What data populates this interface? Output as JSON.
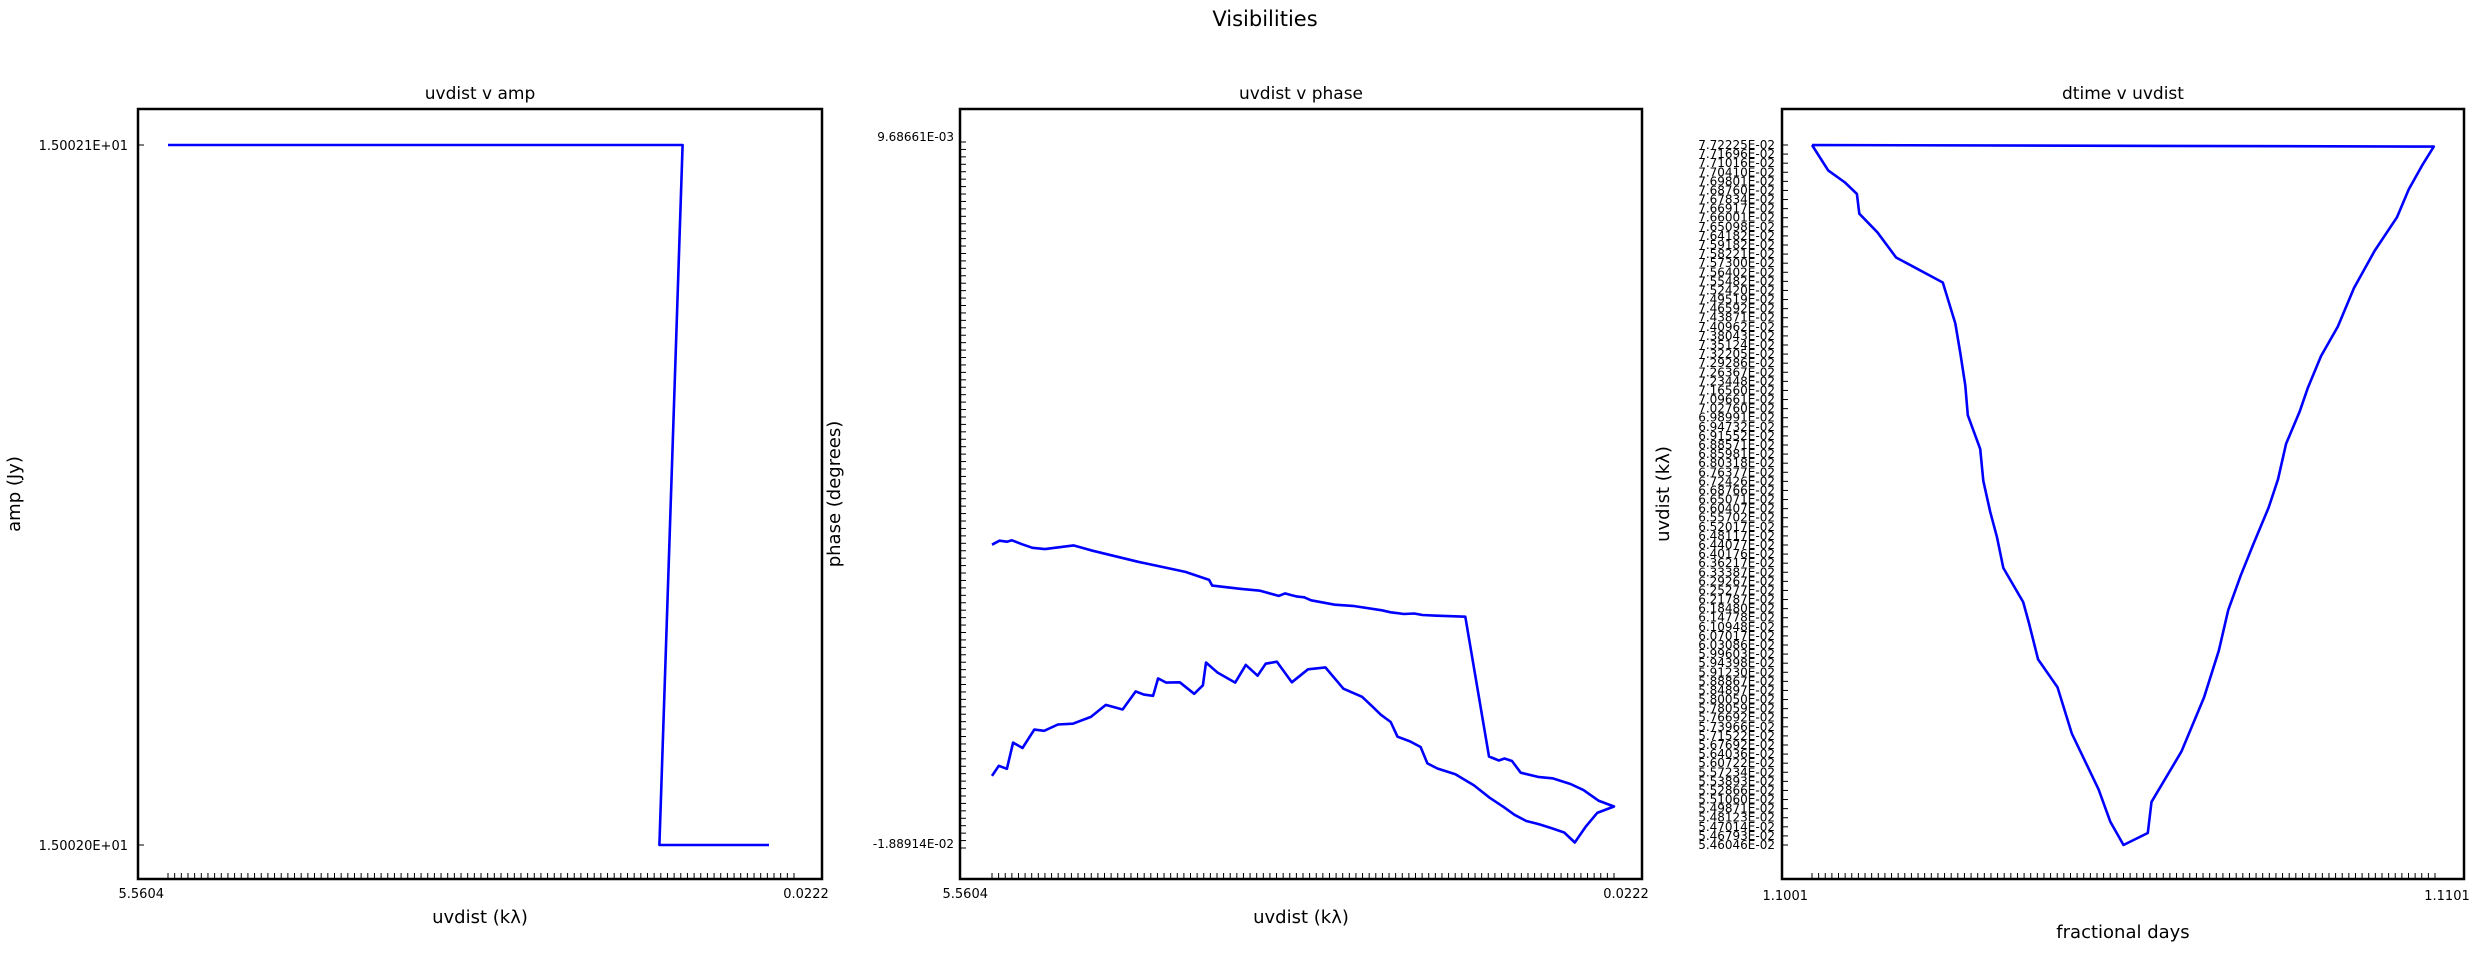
{
  "figure": {
    "title": "Visibilities"
  },
  "chart_data": [
    {
      "type": "line",
      "title": "uvdist v amp",
      "xlabel": "uvdist (kλ)",
      "ylabel": "amp (Jy)",
      "yticklabels": [
        "1.50021E+01",
        "1.50020E+01"
      ],
      "ylim": [
        15.002,
        15.0021
      ],
      "xlim": [
        0,
        1
      ],
      "x_tick_count": 95,
      "x_tick_label_first": "5.5604",
      "x_tick_label_last": "0.0222",
      "series": [
        {
          "x": [
            0.0,
            0.796,
            0.822,
            0.785,
            0.81,
            0.96
          ],
          "y": [
            15.0021,
            15.0021,
            15.0021,
            15.002,
            15.002,
            15.002
          ]
        }
      ]
    },
    {
      "type": "line",
      "title": "uvdist v phase",
      "xlabel": "uvdist (kλ)",
      "ylabel": "phase (degrees)",
      "yticklabel_top": "9.68661E-03",
      "yticklabel_bottom": "-1.88914E-02",
      "ylim": [
        -0.0188914,
        0.00968661
      ],
      "xlim": [
        0,
        1
      ],
      "x_tick_count": 95,
      "x_tick_label_first": "5.5604",
      "x_tick_label_last": "0.0222",
      "series": [
        {
          "x": [
            0.0,
            0.011,
            0.024,
            0.034,
            0.049,
            0.068,
            0.084,
            0.106,
            0.13,
            0.159,
            0.183,
            0.21,
            0.231,
            0.244,
            0.259,
            0.267,
            0.28,
            0.302,
            0.325,
            0.339,
            0.344,
            0.363,
            0.391,
            0.408,
            0.427,
            0.44,
            0.458,
            0.482,
            0.508,
            0.536,
            0.565,
            0.595,
            0.612,
            0.625,
            0.641,
            0.652,
            0.672,
            0.689,
            0.7,
            0.716,
            0.745,
            0.775,
            0.8,
            0.823,
            0.84,
            0.859,
            0.879,
            0.9,
            0.92,
            0.937,
            0.955,
            0.973,
            1.0,
            0.975,
            0.951,
            0.93,
            0.901,
            0.878,
            0.85,
            0.836,
            0.824,
            0.815,
            0.799,
            0.761,
            0.715,
            0.692,
            0.679,
            0.662,
            0.641,
            0.627,
            0.58,
            0.551,
            0.513,
            0.502,
            0.491,
            0.481,
            0.471,
            0.461,
            0.431,
            0.399,
            0.354,
            0.349,
            0.311,
            0.235,
            0.159,
            0.131,
            0.085,
            0.065,
            0.048,
            0.032,
            0.024,
            0.012,
            0.0
          ],
          "y": [
            -0.01607,
            -0.01566,
            -0.01578,
            -0.01471,
            -0.01493,
            -0.01418,
            -0.01423,
            -0.01397,
            -0.01394,
            -0.01366,
            -0.01317,
            -0.01336,
            -0.01262,
            -0.01275,
            -0.0128,
            -0.01209,
            -0.01226,
            -0.01225,
            -0.01272,
            -0.01237,
            -0.01144,
            -0.01186,
            -0.01226,
            -0.01154,
            -0.01198,
            -0.01149,
            -0.01141,
            -0.01225,
            -0.01172,
            -0.01164,
            -0.01251,
            -0.01284,
            -0.01325,
            -0.01357,
            -0.01387,
            -0.01447,
            -0.01466,
            -0.01489,
            -0.01556,
            -0.01577,
            -0.016,
            -0.01646,
            -0.01696,
            -0.01735,
            -0.01766,
            -0.01791,
            -0.01804,
            -0.01821,
            -0.01838,
            -0.01879,
            -0.01813,
            -0.01758,
            -0.01732,
            -0.01708,
            -0.01665,
            -0.0164,
            -0.01617,
            -0.01611,
            -0.01594,
            -0.01546,
            -0.01536,
            -0.01544,
            -0.01528,
            -0.00957,
            -0.00953,
            -0.0095,
            -0.00944,
            -0.00946,
            -0.00939,
            -0.00931,
            -0.00913,
            -0.00908,
            -0.0089,
            -0.00878,
            -0.00875,
            -0.00869,
            -0.00862,
            -0.00872,
            -0.00851,
            -0.00843,
            -0.0083,
            -0.00807,
            -0.00774,
            -0.00733,
            -0.00686,
            -0.00666,
            -0.00681,
            -0.00676,
            -0.00661,
            -0.00645,
            -0.00651,
            -0.00647,
            -0.00663
          ]
        }
      ]
    },
    {
      "type": "line",
      "title": "dtime v uvdist",
      "xlabel": "fractional days",
      "ylabel": "uvdist (kλ)",
      "yticklabels": [
        "7.72225E-02",
        "7.71696E-02",
        "7.71016E-02",
        "7.70410E-02",
        "7.69801E-02",
        "7.68760E-02",
        "7.67834E-02",
        "7.66917E-02",
        "7.66001E-02",
        "7.65098E-02",
        "7.64182E-02",
        "7.59182E-02",
        "7.58221E-02",
        "7.57300E-02",
        "7.56402E-02",
        "7.55482E-02",
        "7.52420E-02",
        "7.49519E-02",
        "7.46592E-02",
        "7.43871E-02",
        "7.40962E-02",
        "7.38043E-02",
        "7.35124E-02",
        "7.32205E-02",
        "7.29286E-02",
        "7.26367E-02",
        "7.23448E-02",
        "7.16560E-02",
        "7.09661E-02",
        "7.02760E-02",
        "6.98991E-02",
        "6.94732E-02",
        "6.91552E-02",
        "6.88571E-02",
        "6.85981E-02",
        "6.80318E-02",
        "6.76377E-02",
        "6.72426E-02",
        "6.68766E-02",
        "6.65071E-02",
        "6.60407E-02",
        "6.55702E-02",
        "6.52017E-02",
        "6.48117E-02",
        "6.44077E-02",
        "6.40176E-02",
        "6.36217E-02",
        "6.33387E-02",
        "6.29267E-02",
        "6.25277E-02",
        "6.21787E-02",
        "6.18480E-02",
        "6.14778E-02",
        "6.10948E-02",
        "6.07017E-02",
        "6.03086E-02",
        "5.99603E-02",
        "5.94398E-02",
        "5.91230E-02",
        "5.88867E-02",
        "5.84897E-02",
        "5.80050E-02",
        "5.78059E-02",
        "5.76692E-02",
        "5.73966E-02",
        "5.71522E-02",
        "5.67692E-02",
        "5.64036E-02",
        "5.60722E-02",
        "5.57234E-02",
        "5.53893E-02",
        "5.52866E-02",
        "5.51060E-02",
        "5.49871E-02",
        "5.48123E-02",
        "5.47014E-02",
        "5.46793E-02",
        "5.46046E-02"
      ],
      "xlim": [
        0,
        1
      ],
      "x_tick_count": 95,
      "x_tick_label_first": "1.1001",
      "x_tick_label_last": "1.1101",
      "series": [
        {
          "x": [
            0.0,
            0.998,
            0.98,
            0.958,
            0.939,
            0.903,
            0.87,
            0.844,
            0.817,
            0.796,
            0.783,
            0.761,
            0.748,
            0.733,
            0.708,
            0.688,
            0.668,
            0.653,
            0.629,
            0.593,
            0.545,
            0.539,
            0.5,
            0.479,
            0.46,
            0.417,
            0.394,
            0.363,
            0.348,
            0.339,
            0.307,
            0.297,
            0.286,
            0.275,
            0.27,
            0.25,
            0.246,
            0.238,
            0.23,
            0.21,
            0.135,
            0.105,
            0.076,
            0.072,
            0.053,
            0.026,
            0.0
          ],
          "y": [
            0.0772225,
            0.0771696,
            0.0765812,
            0.075792,
            0.0748901,
            0.073801,
            0.0726011,
            0.0713562,
            0.070402,
            0.069381,
            0.0686213,
            0.0675711,
            0.0664219,
            0.0655124,
            0.064309,
            0.0633017,
            0.0621908,
            0.0608811,
            0.0593602,
            0.057623,
            0.055998,
            0.054991,
            0.0546046,
            0.055351,
            0.0564017,
            0.0582066,
            0.0597003,
            0.0606022,
            0.061794,
            0.0624515,
            0.063559,
            0.0645508,
            0.065371,
            0.0663712,
            0.067402,
            0.0684913,
            0.069453,
            0.0705009,
            0.071457,
            0.0727812,
            0.073586,
            0.074403,
            0.0750014,
            0.075643,
            0.0760112,
            0.076402,
            0.0772225
          ]
        }
      ]
    }
  ]
}
